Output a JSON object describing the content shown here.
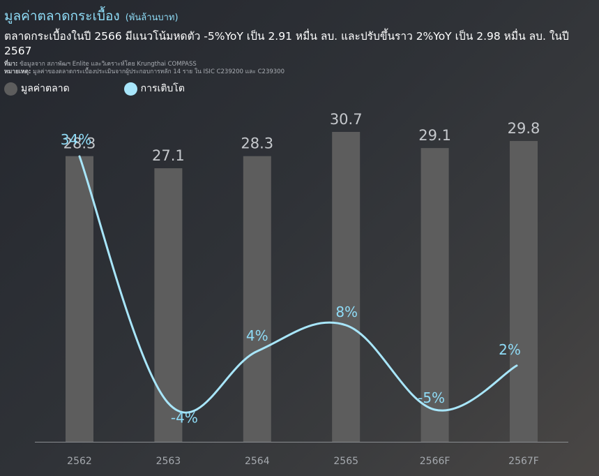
{
  "header": {
    "title": "มูลค่าตลาดกระเบื้อง",
    "unit": "(พันล้านบาท)",
    "subtitle": "ตลาดกระเบื้องในปี 2566 มีแนวโน้มหดตัว -5%YoY เป็น 2.91 หมื่น ลบ. และปรับขึ้นราว 2%YoY เป็น 2.98 หมื่น ลบ. ในปี 2567",
    "source_label": "ที่มา:",
    "source_text": "ข้อมูลจาก สภาพัฒฯ Enlite และวิเคราะห์โดย Krungthai COMPASS",
    "note_label": "หมายเหตุ:",
    "note_text": "มูลค่าของตลาดกระเบื้องประเมินจากผู้ประกอบการหลัก 14 ราย ใน ISIC C239200 และ C239300"
  },
  "legend": [
    {
      "label": "มูลค่าตลาด",
      "color": "#5d5d5d"
    },
    {
      "label": "การเติบโต",
      "color": "#a8e6fb"
    }
  ],
  "colors": {
    "bar": "#5d5d5d",
    "line": "#a8e6fb",
    "axis": "#8a8d91"
  },
  "chart_data": {
    "type": "bar",
    "categories": [
      "2562",
      "2563",
      "2564",
      "2565",
      "2566F",
      "2567F"
    ],
    "series": [
      {
        "name": "มูลค่าตลาด",
        "type": "bar",
        "values": [
          28.3,
          27.1,
          28.3,
          30.7,
          29.1,
          29.8
        ],
        "labels": [
          "28.3",
          "27.1",
          "28.3",
          "30.7",
          "29.1",
          "29.8"
        ]
      },
      {
        "name": "การเติบโต",
        "type": "line",
        "values": [
          34,
          -4,
          4,
          8,
          -5,
          2
        ],
        "labels": [
          "34%",
          "-4%",
          "4%",
          "8%",
          "-5%",
          "2%"
        ]
      }
    ],
    "ylim": [
      0,
      30.7
    ],
    "y2lim": [
      -5,
      34
    ],
    "legend": "top-left",
    "grid": false
  }
}
